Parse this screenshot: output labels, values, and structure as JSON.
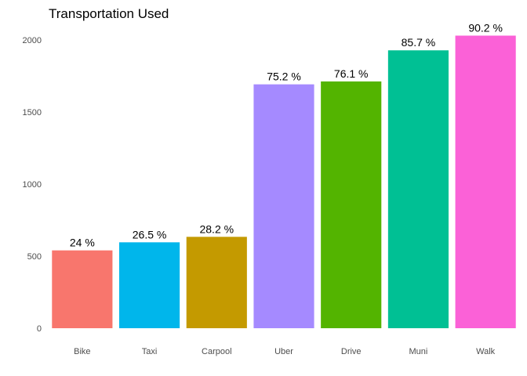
{
  "chart_data": {
    "type": "bar",
    "title": "Transportation Used",
    "xlabel": "",
    "ylabel": "",
    "ylim": [
      0,
      2000
    ],
    "yticks": [
      0,
      500,
      1000,
      1500,
      2000
    ],
    "grid": false,
    "legend": "none",
    "categories": [
      "Bike",
      "Taxi",
      "Carpool",
      "Uber",
      "Drive",
      "Muni",
      "Walk"
    ],
    "values": [
      540,
      596,
      634,
      1692,
      1712,
      1928,
      2030
    ],
    "labels": [
      "24 %",
      "26.5 %",
      "28.2 %",
      "75.2 %",
      "76.1 %",
      "85.7 %",
      "90.2 %"
    ],
    "colors": [
      "#F8766D",
      "#00B6EB",
      "#C49A00",
      "#A58AFF",
      "#53B400",
      "#00C094",
      "#FB61D7"
    ]
  }
}
